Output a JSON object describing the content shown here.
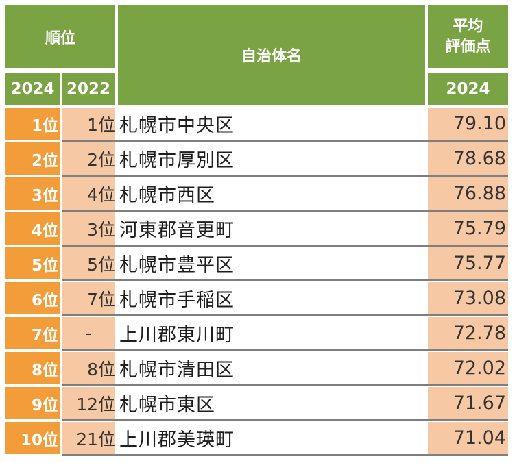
{
  "table": {
    "header": {
      "rank": "順位",
      "year_current": "2024",
      "year_previous": "2022",
      "municipality": "自治体名",
      "score_line1": "平均",
      "score_line2": "評価点",
      "score_year": "2024"
    },
    "rows": [
      {
        "rank": "1位",
        "prev": "1位",
        "name": "札幌市中央区",
        "score": "79.10"
      },
      {
        "rank": "2位",
        "prev": "2位",
        "name": "札幌市厚別区",
        "score": "78.68"
      },
      {
        "rank": "3位",
        "prev": "4位",
        "name": "札幌市西区",
        "score": "76.88"
      },
      {
        "rank": "4位",
        "prev": "3位",
        "name": "河東郡音更町",
        "score": "75.79"
      },
      {
        "rank": "5位",
        "prev": "5位",
        "name": "札幌市豊平区",
        "score": "75.77"
      },
      {
        "rank": "6位",
        "prev": "7位",
        "name": "札幌市手稲区",
        "score": "73.08"
      },
      {
        "rank": "7位",
        "prev": "-",
        "name": "上川郡東川町",
        "score": "72.78"
      },
      {
        "rank": "8位",
        "prev": "8位",
        "name": "札幌市清田区",
        "score": "72.02"
      },
      {
        "rank": "9位",
        "prev": "12位",
        "name": "札幌市東区",
        "score": "71.67"
      },
      {
        "rank": "10位",
        "prev": "21位",
        "name": "上川郡美瑛町",
        "score": "71.04"
      }
    ]
  },
  "colors": {
    "header_green": "#7aa344",
    "rank_orange": "#f39c3a",
    "light_peach": "#f6c8a4",
    "separator_gray": "#7f7f7f"
  }
}
